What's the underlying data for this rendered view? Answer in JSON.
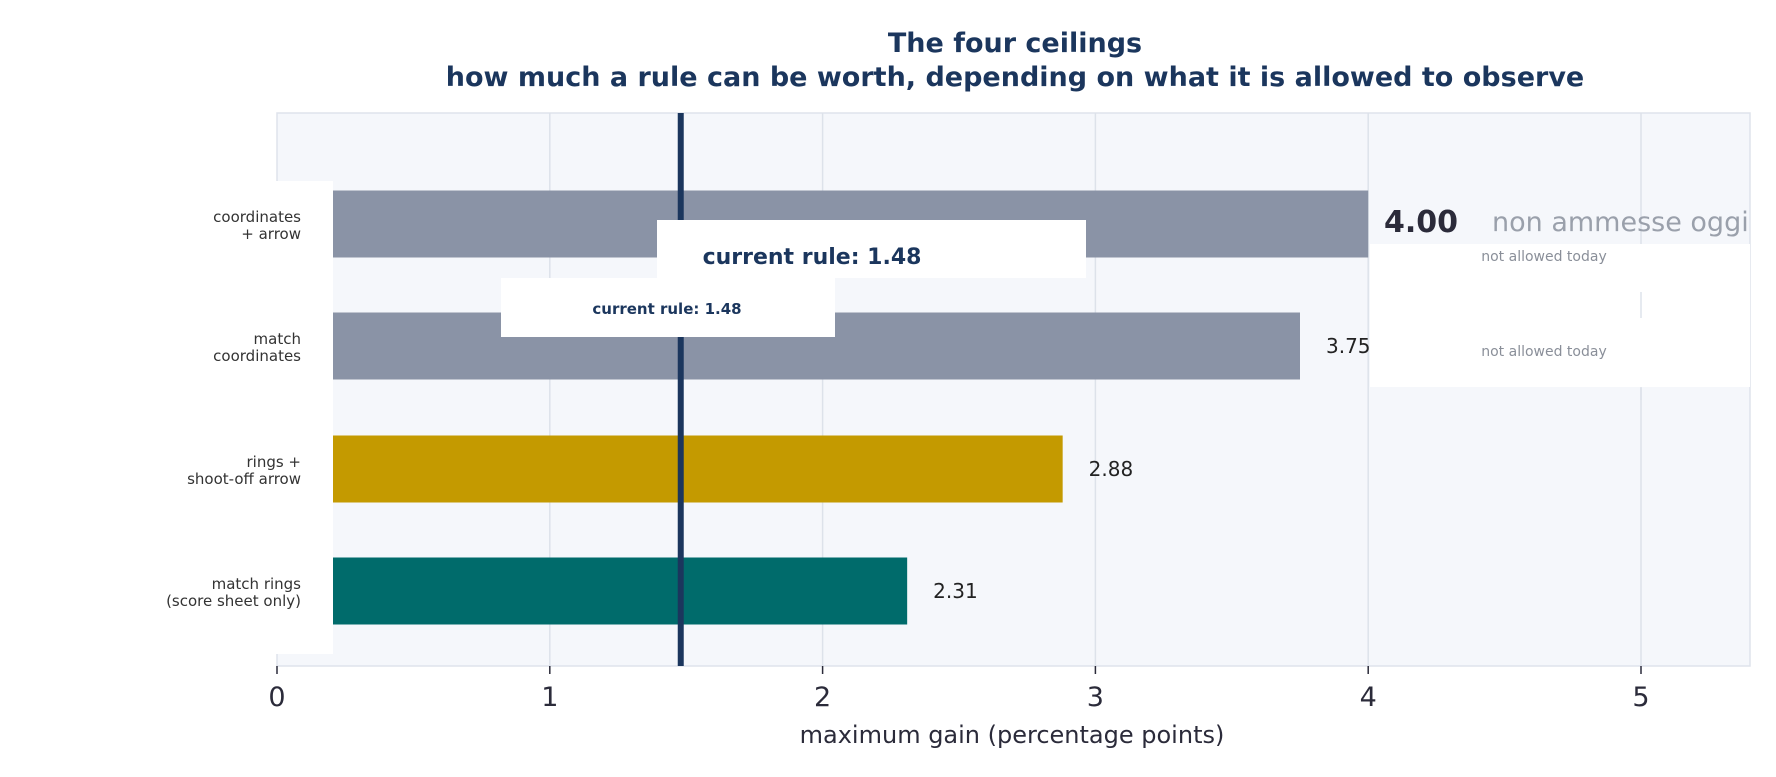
{
  "chart_data": {
    "type": "bar",
    "orientation": "horizontal",
    "title": "The four ceilings",
    "subtitle": "how much a rule can be worth, depending on what it is allowed to observe",
    "xlabel": "maximum gain (percentage points)",
    "xlim": [
      0,
      5.4
    ],
    "xticks": [
      "0",
      "1",
      "2",
      "3",
      "4",
      "5"
    ],
    "grid": true,
    "categories": [
      [
        "coordinates",
        "+ arrow"
      ],
      [
        "match",
        "coordinates"
      ],
      [
        "rings +",
        "shoot-off arrow"
      ],
      [
        "match rings",
        "(score sheet only)"
      ]
    ],
    "values": [
      4.0,
      3.75,
      2.88,
      2.31
    ],
    "value_labels": [
      "4.00",
      "3.75",
      "2.88",
      "2.31"
    ],
    "bar_colors": [
      "#8a93a6",
      "#8a93a6",
      "#c49a00",
      "#006b6b"
    ],
    "reference_line": {
      "value": 1.48,
      "color": "#1b365d"
    },
    "annotations": {
      "current_rule_large": "current rule: 1.48",
      "current_rule_small": "current rule: 1.48",
      "not_allowed_1": "not allowed today",
      "not_allowed_2": "not allowed today",
      "overlay_italian": "non ammesse oggi"
    },
    "colors": {
      "title": "#1b365d",
      "plot_background": "#f5f7fb",
      "grid": "#dde2ea",
      "muted_text": "#8a8f99"
    }
  }
}
